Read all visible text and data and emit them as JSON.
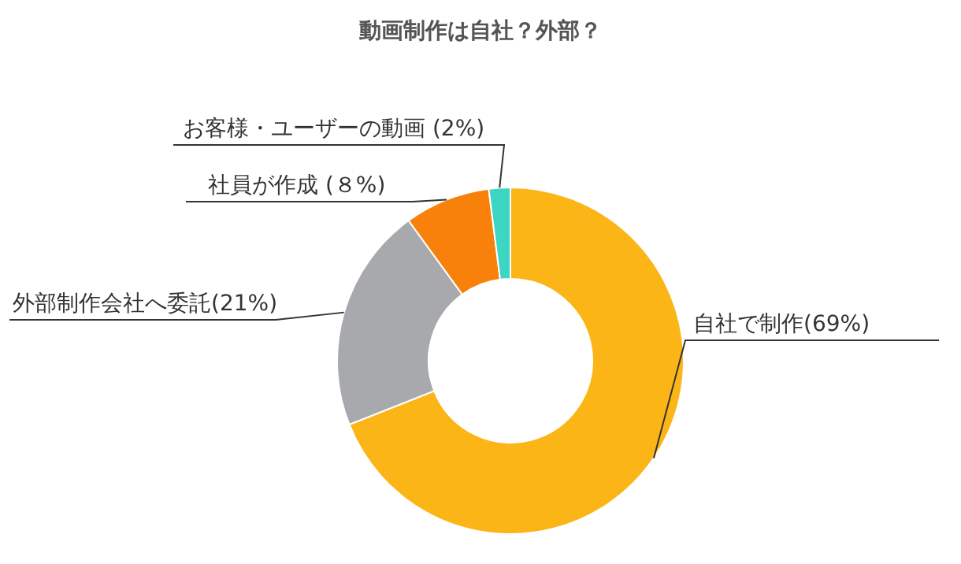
{
  "chart_data": {
    "type": "donut",
    "title": "動画制作は自社？外部？",
    "categories": [
      "自社で制作",
      "外部制作会社へ委託",
      "社員が作成",
      "お客様・ユーザーの動画"
    ],
    "values": [
      69,
      21,
      8,
      2
    ],
    "colors": [
      "#fbb516",
      "#a7a9ac",
      "#f7810a",
      "#3dd6c2"
    ],
    "value_labels": [
      "(69%)",
      "(21%)",
      " (８%)",
      " (2%)"
    ],
    "legend": false
  }
}
